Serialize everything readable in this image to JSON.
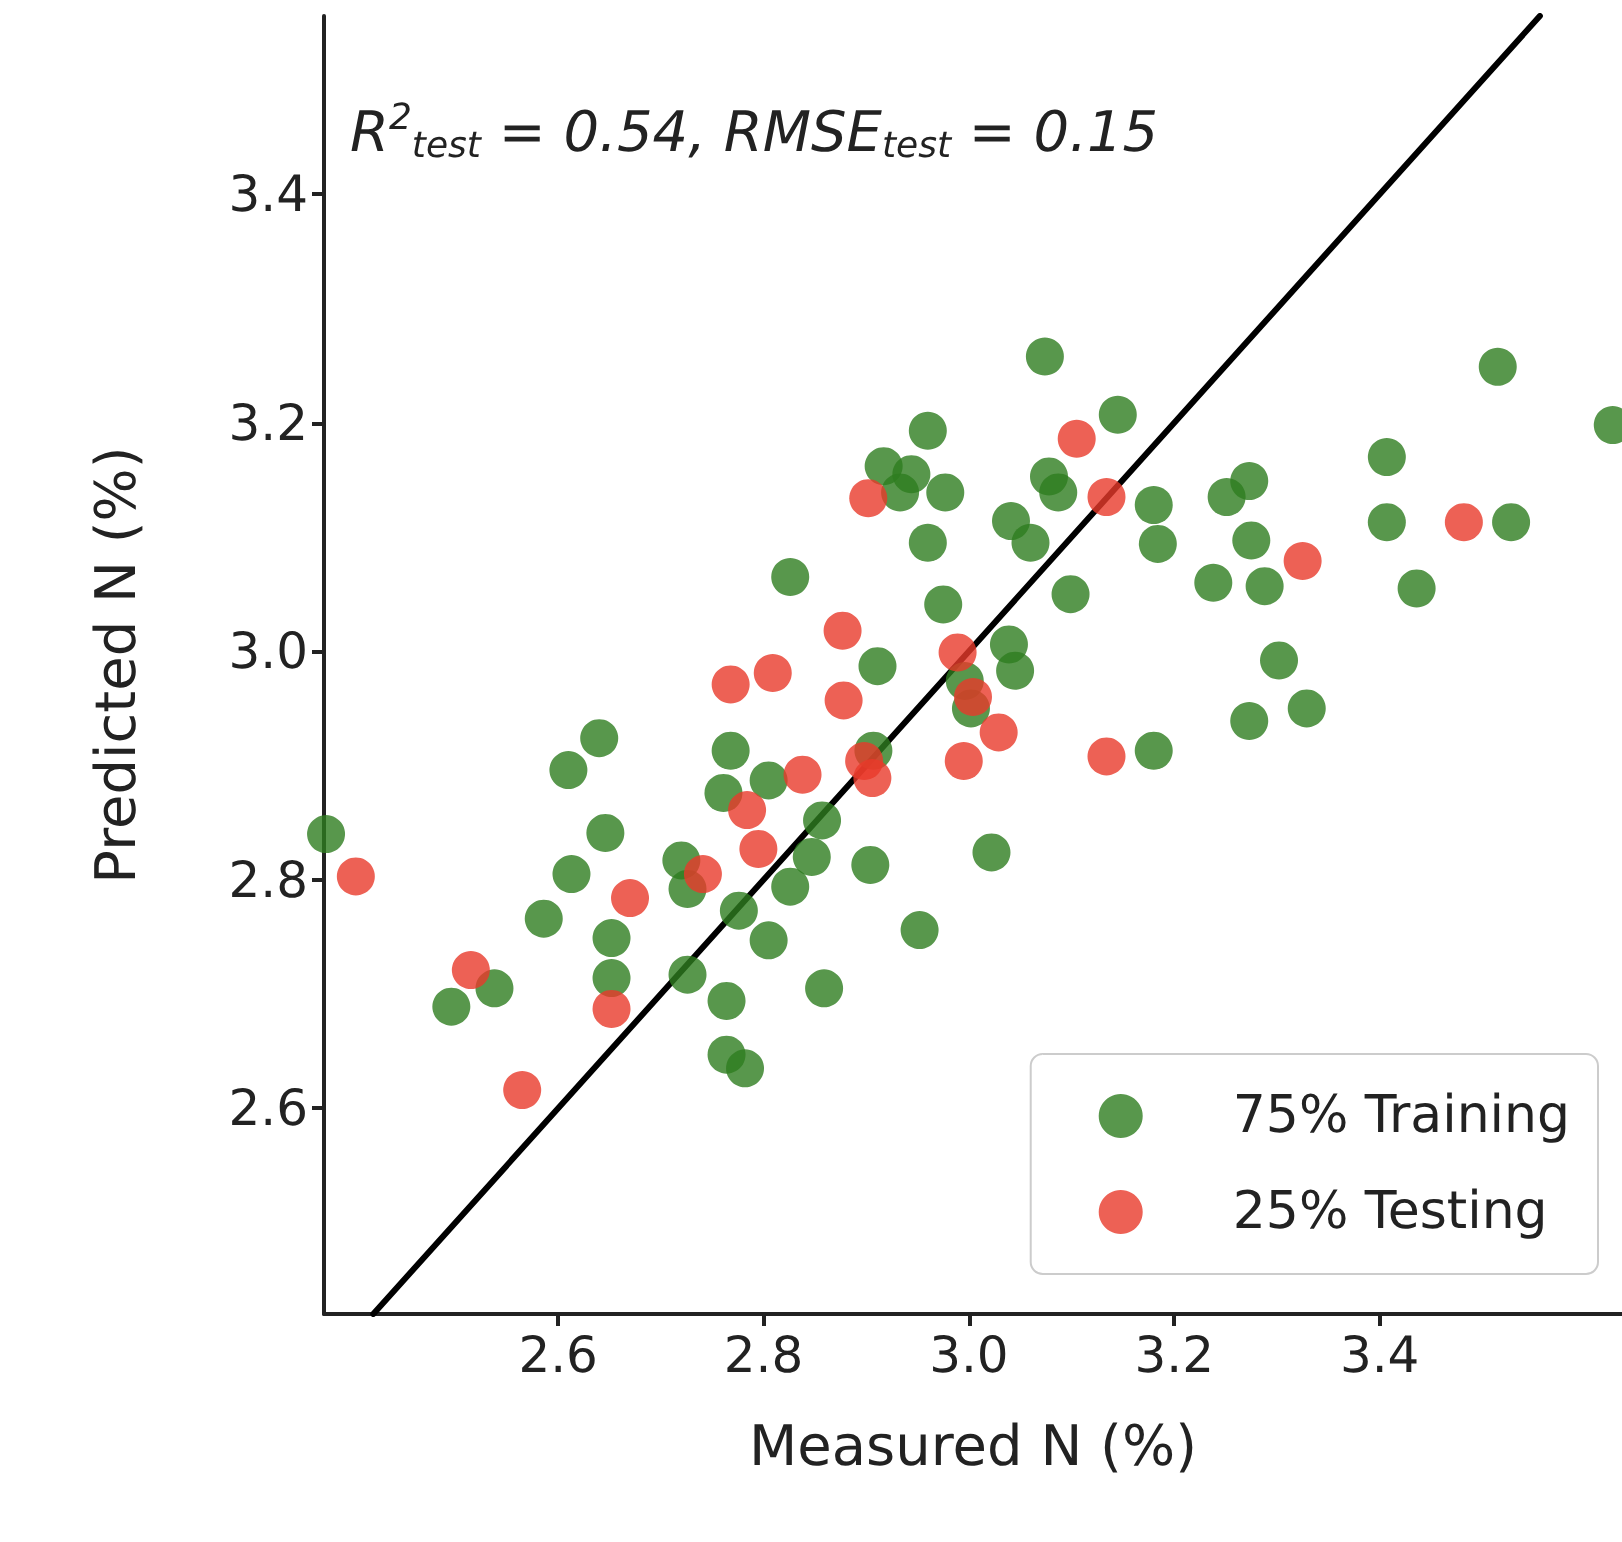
{
  "chart_data": {
    "type": "scatter",
    "xlabel": "Measured N (%)",
    "ylabel": "Predicted N (%)",
    "annotations": [
      "R$^{2}$$_{test}$ = 0.54, RMSE$_{test}$ = 0.15"
    ],
    "xlim": [
      2.372,
      3.636
    ],
    "ylim": [
      2.42,
      3.556
    ],
    "xticks": [
      2.6,
      2.8,
      {
        "value": 3,
        "label": "3.0"
      },
      3.2,
      3.4
    ],
    "yticks": [
      2.6,
      2.8,
      {
        "value": 3,
        "label": "3.0"
      },
      3.2,
      3.4
    ],
    "grid": false,
    "legend": "bottom right",
    "marker": "circle",
    "series": [
      {
        "name": "75% Training",
        "color": "#2e7d1f",
        "x": [
          2.374,
          2.496,
          2.538,
          2.586,
          2.61,
          2.613,
          2.64,
          2.646,
          2.652,
          2.652,
          2.72,
          2.726,
          2.726,
          2.761,
          2.768,
          2.764,
          2.764,
          2.782,
          2.776,
          2.805,
          2.805,
          2.826,
          2.826,
          2.847,
          2.857,
          2.859,
          2.904,
          2.911,
          2.917,
          2.933,
          2.944,
          2.96,
          2.977,
          2.96,
          2.975,
          2.952,
          2.907,
          2.996,
          3.002,
          3.039,
          3.045,
          3.022,
          3.041,
          3.06,
          3.074,
          3.078,
          3.087,
          3.099,
          3.145,
          3.18,
          3.184,
          3.18,
          3.238,
          3.251,
          3.273,
          3.275,
          3.288,
          3.302,
          3.273,
          3.329,
          3.407,
          3.407,
          3.436,
          3.515,
          3.528,
          3.627
        ],
        "values": [
          2.84,
          2.689,
          2.705,
          2.766,
          2.896,
          2.805,
          2.924,
          2.841,
          2.749,
          2.714,
          2.817,
          2.792,
          2.717,
          2.876,
          2.913,
          2.694,
          2.647,
          2.635,
          2.773,
          2.887,
          2.747,
          3.065,
          2.794,
          2.82,
          2.852,
          2.705,
          2.813,
          2.987,
          3.162,
          3.139,
          3.155,
          3.193,
          3.139,
          3.095,
          3.041,
          2.756,
          2.913,
          2.974,
          2.95,
          3.006,
          2.983,
          2.824,
          3.114,
          3.095,
          3.258,
          3.153,
          3.139,
          3.05,
          3.207,
          3.128,
          3.094,
          2.913,
          3.06,
          3.135,
          3.149,
          3.097,
          3.057,
          2.992,
          2.939,
          2.95,
          3.17,
          3.113,
          3.055,
          3.249,
          3.113,
          3.198
        ]
      },
      {
        "name": "25% Testing",
        "color": "#e8392b",
        "x": [
          2.403,
          2.515,
          2.565,
          2.652,
          2.67,
          2.741,
          2.768,
          2.784,
          2.795,
          2.809,
          2.838,
          2.877,
          2.878,
          2.902,
          2.898,
          2.906,
          2.989,
          3.004,
          2.995,
          3.029,
          3.105,
          3.134,
          3.134,
          3.325,
          3.482
        ],
        "values": [
          2.803,
          2.721,
          2.616,
          2.687,
          2.784,
          2.805,
          2.971,
          2.861,
          2.827,
          2.981,
          2.892,
          3.018,
          2.957,
          3.134,
          2.904,
          2.889,
          2.999,
          2.96,
          2.904,
          2.929,
          3.186,
          3.135,
          2.908,
          3.079,
          3.113
        ]
      },
      {
        "type": "line",
        "marker": "none",
        "color": "#000000",
        "x": [
          2.42,
          3.556
        ],
        "values": [
          2.42,
          3.556
        ]
      }
    ]
  }
}
